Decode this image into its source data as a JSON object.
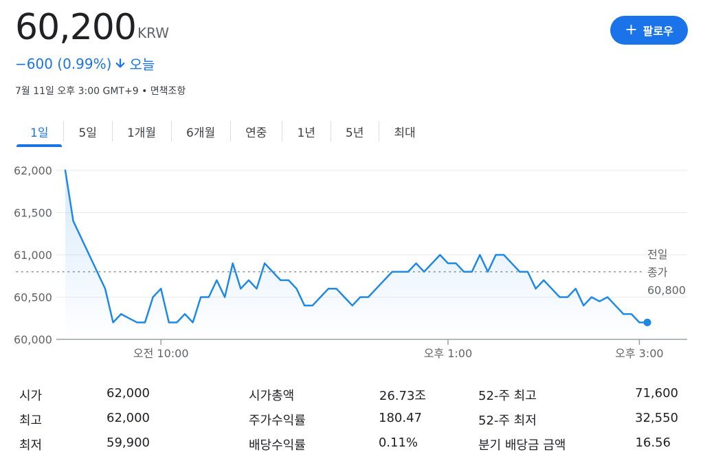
{
  "quote": {
    "price": "60,200",
    "currency": "KRW",
    "change": "−600 (0.99%)",
    "period": "오늘",
    "timestamp": "7월 11일 오후 3:00 GMT+9",
    "disclaimer": "면책조항",
    "separator": "•"
  },
  "follow_button": {
    "label": "팔로우",
    "icon": "plus-icon"
  },
  "tabs": [
    {
      "label": "1일",
      "active": true
    },
    {
      "label": "5일",
      "active": false
    },
    {
      "label": "1개월",
      "active": false
    },
    {
      "label": "6개월",
      "active": false
    },
    {
      "label": "연중",
      "active": false
    },
    {
      "label": "1년",
      "active": false
    },
    {
      "label": "5년",
      "active": false
    },
    {
      "label": "최대",
      "active": false
    }
  ],
  "colors": {
    "accent": "#1a73e8",
    "line": "#1e88e5",
    "grid": "#e8eaed",
    "text_muted": "#5f6368"
  },
  "chart_data": {
    "type": "line",
    "series": [
      {
        "values": [
          [
            "09:00",
            62000
          ],
          [
            "09:05",
            61400
          ],
          [
            "09:10",
            61200
          ],
          [
            "09:15",
            61000
          ],
          [
            "09:20",
            60800
          ],
          [
            "09:25",
            60600
          ],
          [
            "09:30",
            60200
          ],
          [
            "09:35",
            60300
          ],
          [
            "09:40",
            60250
          ],
          [
            "09:45",
            60200
          ],
          [
            "09:50",
            60200
          ],
          [
            "09:55",
            60500
          ],
          [
            "10:00",
            60600
          ],
          [
            "10:05",
            60200
          ],
          [
            "10:10",
            60200
          ],
          [
            "10:15",
            60300
          ],
          [
            "10:20",
            60200
          ],
          [
            "10:25",
            60500
          ],
          [
            "10:30",
            60500
          ],
          [
            "10:35",
            60700
          ],
          [
            "10:40",
            60500
          ],
          [
            "10:45",
            60900
          ],
          [
            "10:50",
            60600
          ],
          [
            "10:55",
            60700
          ],
          [
            "11:00",
            60600
          ],
          [
            "11:05",
            60900
          ],
          [
            "11:10",
            60800
          ],
          [
            "11:15",
            60700
          ],
          [
            "11:20",
            60700
          ],
          [
            "11:25",
            60600
          ],
          [
            "11:30",
            60400
          ],
          [
            "11:35",
            60400
          ],
          [
            "11:40",
            60500
          ],
          [
            "11:45",
            60600
          ],
          [
            "11:50",
            60600
          ],
          [
            "11:55",
            60500
          ],
          [
            "12:00",
            60400
          ],
          [
            "12:05",
            60500
          ],
          [
            "12:10",
            60500
          ],
          [
            "12:15",
            60600
          ],
          [
            "12:20",
            60700
          ],
          [
            "12:25",
            60800
          ],
          [
            "12:30",
            60800
          ],
          [
            "12:35",
            60800
          ],
          [
            "12:40",
            60900
          ],
          [
            "12:45",
            60800
          ],
          [
            "12:50",
            60900
          ],
          [
            "12:55",
            61000
          ],
          [
            "13:00",
            60900
          ],
          [
            "13:05",
            60900
          ],
          [
            "13:10",
            60800
          ],
          [
            "13:15",
            60800
          ],
          [
            "13:20",
            61000
          ],
          [
            "13:25",
            60800
          ],
          [
            "13:30",
            61000
          ],
          [
            "13:35",
            61000
          ],
          [
            "13:40",
            60900
          ],
          [
            "13:45",
            60800
          ],
          [
            "13:50",
            60800
          ],
          [
            "13:55",
            60600
          ],
          [
            "14:00",
            60700
          ],
          [
            "14:05",
            60600
          ],
          [
            "14:10",
            60500
          ],
          [
            "14:15",
            60500
          ],
          [
            "14:20",
            60600
          ],
          [
            "14:25",
            60400
          ],
          [
            "14:30",
            60500
          ],
          [
            "14:35",
            60450
          ],
          [
            "14:40",
            60500
          ],
          [
            "14:45",
            60400
          ],
          [
            "14:50",
            60300
          ],
          [
            "14:55",
            60300
          ],
          [
            "15:00",
            60200
          ],
          [
            "15:05",
            60200
          ]
        ]
      }
    ],
    "x_ticks": [
      {
        "time": "10:00",
        "label": "오전 10:00"
      },
      {
        "time": "13:00",
        "label": "오후 1:00"
      },
      {
        "time": "15:00",
        "label": "오후 3:00"
      }
    ],
    "x_range": [
      "09:00",
      "15:30"
    ],
    "y_ticks": [
      "62,000",
      "61,500",
      "61,000",
      "60,500",
      "60,000"
    ],
    "ylim": [
      60000,
      62000
    ],
    "reference_line": {
      "value": 60800,
      "label_lines": [
        "전일",
        "종가",
        "60,800"
      ]
    },
    "last_point": {
      "time": "15:05",
      "value": 60200
    },
    "grid": true
  },
  "stats": [
    {
      "label": "시가",
      "value": "62,000"
    },
    {
      "label": "최고",
      "value": "62,000"
    },
    {
      "label": "최저",
      "value": "59,900"
    },
    {
      "label": "시가총액",
      "value": "26.73조"
    },
    {
      "label": "주가수익률",
      "value": "180.47"
    },
    {
      "label": "배당수익률",
      "value": "0.11%"
    },
    {
      "label": "52-주 최고",
      "value": "71,600"
    },
    {
      "label": "52-주 최저",
      "value": "32,550"
    },
    {
      "label": "분기 배당금 금액",
      "value": "16.56"
    }
  ]
}
